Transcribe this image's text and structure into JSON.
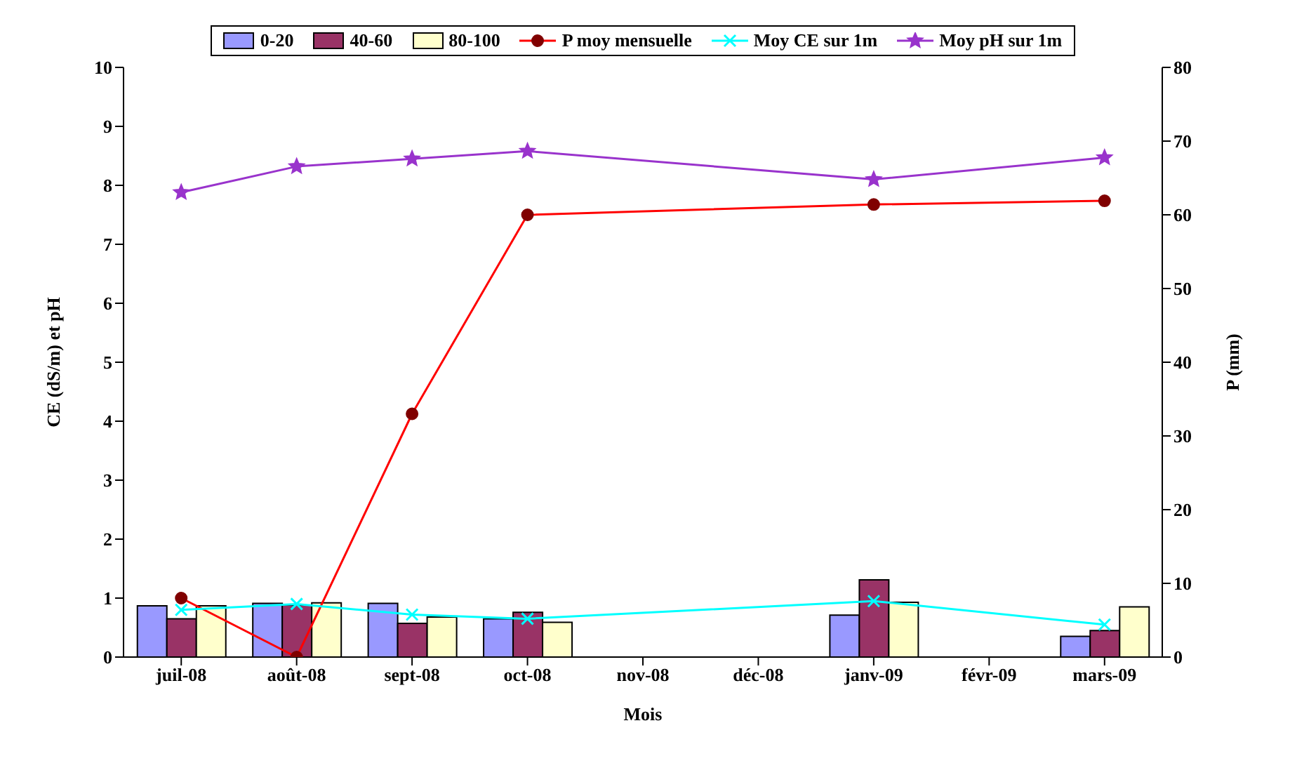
{
  "chart_data": {
    "type": "bar",
    "xlabel": "Mois",
    "ylabel": "CE (dS/m) et pH",
    "y2label": "P (mm)",
    "categories": [
      "juil-08",
      "août-08",
      "sept-08",
      "oct-08",
      "nov-08",
      "déc-08",
      "janv-09",
      "févr-09",
      "mars-09"
    ],
    "series": [
      {
        "name": "0-20",
        "color": "#9999ff",
        "values": [
          0.87,
          0.91,
          0.91,
          0.65,
          null,
          null,
          0.71,
          null,
          0.35
        ]
      },
      {
        "name": "40-60",
        "color": "#993366",
        "values": [
          0.65,
          0.88,
          0.57,
          0.76,
          null,
          null,
          1.31,
          null,
          0.45
        ]
      },
      {
        "name": "80-100",
        "color": "#ffffcc",
        "values": [
          0.87,
          0.92,
          0.68,
          0.59,
          null,
          null,
          0.93,
          null,
          0.85
        ]
      },
      {
        "name": "P moy mensuelle",
        "type": "line",
        "axis": "y2",
        "color": "#ff0000",
        "marker": "circle",
        "values": [
          8,
          0,
          33,
          60,
          null,
          null,
          61.4,
          null,
          61.9
        ]
      },
      {
        "name": "Moy CE sur 1m",
        "type": "line",
        "color": "#00ffff",
        "marker": "cross",
        "values": [
          0.8,
          0.9,
          0.72,
          0.65,
          null,
          null,
          0.95,
          null,
          0.55
        ]
      },
      {
        "name": "Moy pH sur 1m",
        "type": "line",
        "color": "#9933cc",
        "marker": "star",
        "values": [
          7.88,
          8.32,
          8.45,
          8.58,
          null,
          null,
          8.1,
          null,
          8.47
        ]
      }
    ],
    "ylim": [
      0,
      10
    ],
    "yticks": [
      0,
      1,
      2,
      3,
      4,
      5,
      6,
      7,
      8,
      9,
      10
    ],
    "y2lim": [
      0,
      80
    ],
    "y2ticks": [
      0,
      10,
      20,
      30,
      40,
      50,
      60,
      70,
      80
    ],
    "grid": false,
    "legend": "top"
  }
}
